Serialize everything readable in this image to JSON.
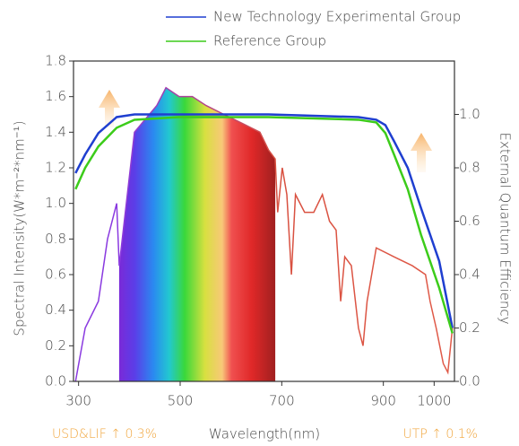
{
  "chart_data": {
    "type": "line",
    "legend": "top",
    "xlabel": "Wavelength(nm)",
    "ylabel": "Spectral Intensity(W*m⁻²*nm⁻¹)",
    "y2label": "External Quantum Efficiency",
    "annotations": [
      "USD&LIF ↑ 0.3%",
      "UTP ↑ 0.1%"
    ],
    "xlim": [
      290,
      1040
    ],
    "xticks": [
      300,
      500,
      700,
      900,
      1000
    ],
    "ylim": [
      0,
      1.8
    ],
    "yticks": [
      {
        "value": 0,
        "label": "0.0"
      },
      {
        "value": 0.2,
        "label": "0.2"
      },
      {
        "value": 0.4,
        "label": "0.4"
      },
      {
        "value": 0.6,
        "label": "0.6"
      },
      {
        "value": 0.8,
        "label": "0.8"
      },
      {
        "value": 1,
        "label": "1.0"
      },
      {
        "value": 1.2,
        "label": "1.2"
      },
      {
        "value": 1.4,
        "label": "1.4"
      },
      {
        "value": 1.6,
        "label": "1.6"
      },
      {
        "value": 1.8,
        "label": "1.8"
      }
    ],
    "y2lim": [
      0,
      1.2
    ],
    "y2ticks": [
      {
        "value": 0,
        "label": "0.0"
      },
      {
        "value": 0.2,
        "label": "0.2"
      },
      {
        "value": 0.4,
        "label": "0.4"
      },
      {
        "value": 0.6,
        "label": "0.6"
      },
      {
        "value": 0.8,
        "label": "0.8"
      },
      {
        "value": 1,
        "label": "1.0"
      }
    ],
    "spectrum": {
      "x": [
        294,
        313,
        339,
        357,
        375,
        380,
        410,
        454,
        472,
        498,
        524,
        551,
        586,
        622,
        657,
        674,
        687,
        692,
        701,
        710,
        719,
        727,
        745,
        763,
        780,
        794,
        807,
        816,
        824,
        837,
        851,
        860,
        868,
        886,
        921,
        957,
        983,
        992,
        1004,
        1018,
        1027,
        1036
      ],
      "values": [
        0,
        0.3,
        0.45,
        0.8,
        1.0,
        0.65,
        1.4,
        1.55,
        1.65,
        1.6,
        1.6,
        1.55,
        1.5,
        1.45,
        1.4,
        1.3,
        1.25,
        0.95,
        1.2,
        1.05,
        0.6,
        1.05,
        0.95,
        0.95,
        1.05,
        0.9,
        0.85,
        0.45,
        0.7,
        0.65,
        0.3,
        0.2,
        0.45,
        0.75,
        0.7,
        0.65,
        0.6,
        0.45,
        0.3,
        0.1,
        0.05,
        0.3
      ]
    },
    "series": [
      {
        "name": "New Technology Experimental Group",
        "color": "#1f3fd0",
        "axis": "y2",
        "x": [
          294,
          313,
          339,
          375,
          410,
          498,
          674,
          851,
          886,
          904,
          921,
          948,
          974,
          1010,
          1036
        ],
        "values": [
          0.78,
          0.85,
          0.93,
          0.99,
          1.0,
          1.0,
          1.0,
          0.99,
          0.98,
          0.96,
          0.9,
          0.8,
          0.65,
          0.45,
          0.2
        ]
      },
      {
        "name": "Reference Group",
        "color": "#3ccc1a",
        "axis": "y2",
        "x": [
          294,
          313,
          339,
          375,
          410,
          498,
          674,
          851,
          886,
          904,
          921,
          948,
          974,
          1010,
          1036
        ],
        "values": [
          0.72,
          0.8,
          0.88,
          0.95,
          0.98,
          0.99,
          0.99,
          0.98,
          0.97,
          0.93,
          0.85,
          0.72,
          0.55,
          0.35,
          0.18
        ]
      }
    ]
  }
}
